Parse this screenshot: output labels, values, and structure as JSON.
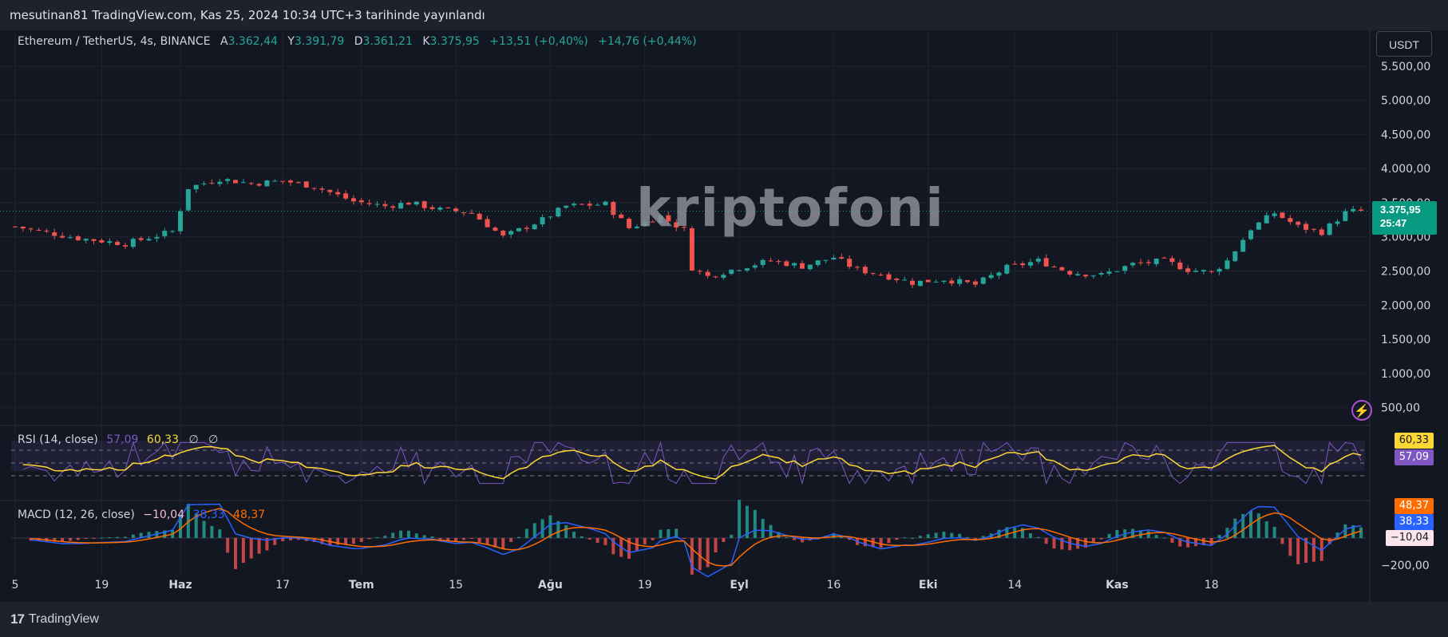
{
  "header": {
    "publisher_line": "mesutinan81 TradingView.com, Kas 25, 2024 10:34 UTC+3 tarihinde yayınlandı"
  },
  "legend": {
    "symbol": "Ethereum / TetherUS, 4s, BINANCE",
    "open_label": "A",
    "open": "3.362,44",
    "high_label": "Y",
    "high": "3.391,79",
    "low_label": "D",
    "low": "3.361,21",
    "close_label": "K",
    "close": "3.375,95",
    "change1": "+13,51 (+0,40%)",
    "change2": "+14,76 (+0,44%)"
  },
  "currency_button": "USDT",
  "watermark": "kriptofoni",
  "last_price": {
    "price": "3.375,95",
    "countdown": "25:47"
  },
  "rsi": {
    "label": "RSI (14, close)",
    "value1": "57,09",
    "value2": "60,33",
    "extra1": "∅",
    "extra2": "∅"
  },
  "macd": {
    "label": "MACD (12, 26, close)",
    "value_hist": "−10,04",
    "value_macd": "38,33",
    "value_signal": "48,37"
  },
  "badges": {
    "rsi_ma": "60,33",
    "rsi": "57,09",
    "macd_signal": "48,37",
    "macd": "38,33",
    "hist": "−10,04",
    "macd_tick": "−200,00"
  },
  "footer": {
    "brand": "TradingView"
  },
  "colors": {
    "up": "#26a69a",
    "down": "#ef5350",
    "rsi_line": "#7e57c2",
    "rsi_ma": "#fdd835",
    "macd": "#2962ff",
    "signal": "#ff6d00",
    "bg": "#131722"
  },
  "chart_data": [
    {
      "type": "candlestick",
      "symbol": "ETHUSDT",
      "interval": "4h",
      "x_ticks": [
        "5",
        "19",
        "Haz",
        "17",
        "Tem",
        "15",
        "Ağu",
        "19",
        "Eyl",
        "16",
        "Eki",
        "14",
        "Kas",
        "18"
      ],
      "y_ticks": [
        "5.500,00",
        "5.000,00",
        "4.500,00",
        "4.000,00",
        "3.500,00",
        "3.000,00",
        "2.500,00",
        "2.000,00",
        "1.500,00",
        "1.000,00",
        "500,00"
      ],
      "y_tick_values": [
        5500,
        5000,
        4500,
        4000,
        3500,
        3000,
        2500,
        2000,
        1500,
        1000,
        500
      ],
      "ylim": [
        250,
        5650
      ],
      "close_trace": [
        [
          0,
          3150
        ],
        [
          8,
          2980
        ],
        [
          14,
          2900
        ],
        [
          20,
          3080
        ],
        [
          22,
          3720
        ],
        [
          26,
          3850
        ],
        [
          30,
          3780
        ],
        [
          34,
          3820
        ],
        [
          38,
          3740
        ],
        [
          43,
          3520
        ],
        [
          47,
          3450
        ],
        [
          50,
          3500
        ],
        [
          54,
          3400
        ],
        [
          58,
          3350
        ],
        [
          62,
          3000
        ],
        [
          64,
          3100
        ],
        [
          67,
          3250
        ],
        [
          70,
          3450
        ],
        [
          75,
          3480
        ],
        [
          78,
          3130
        ],
        [
          82,
          3300
        ],
        [
          85,
          3100
        ],
        [
          86,
          2550
        ],
        [
          88,
          2420
        ],
        [
          92,
          2550
        ],
        [
          96,
          2650
        ],
        [
          100,
          2570
        ],
        [
          104,
          2700
        ],
        [
          107,
          2520
        ],
        [
          110,
          2450
        ],
        [
          114,
          2330
        ],
        [
          118,
          2380
        ],
        [
          122,
          2300
        ],
        [
          126,
          2550
        ],
        [
          130,
          2650
        ],
        [
          134,
          2480
        ],
        [
          138,
          2440
        ],
        [
          142,
          2600
        ],
        [
          146,
          2650
        ],
        [
          149,
          2520
        ],
        [
          152,
          2480
        ],
        [
          154,
          2650
        ],
        [
          157,
          3120
        ],
        [
          160,
          3350
        ],
        [
          163,
          3150
        ],
        [
          166,
          3070
        ],
        [
          169,
          3350
        ],
        [
          170,
          3376
        ]
      ],
      "last_price": 3375.95
    },
    {
      "type": "line",
      "name": "RSI (14, close)",
      "levels": [
        70,
        50,
        30
      ],
      "values": {
        "rsi": 57.09,
        "rsi_ma": 60.33
      }
    },
    {
      "type": "line",
      "name": "MACD (12, 26, close)",
      "values": {
        "histogram": -10.04,
        "macd": 38.33,
        "signal": 48.37
      },
      "y_ticks": [
        "−200,00"
      ]
    }
  ]
}
